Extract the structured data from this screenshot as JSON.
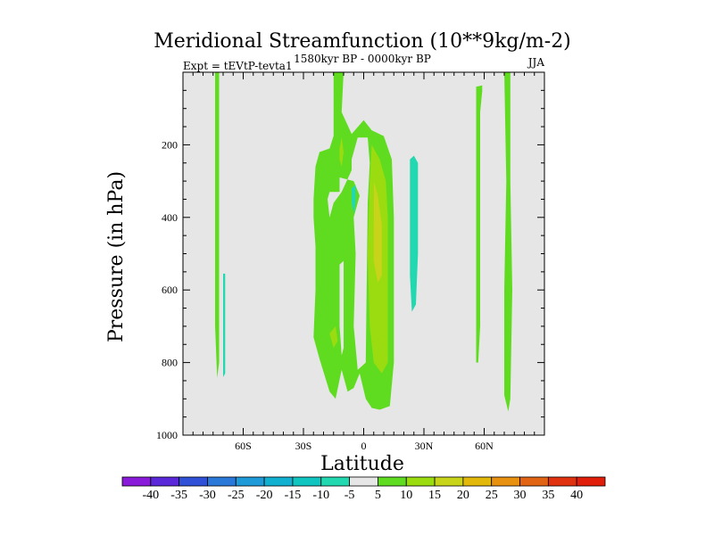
{
  "chart_data": {
    "type": "contour",
    "title": "Meridional Streamfunction (10**9kg/m-2)",
    "subtitle_left": "Expt = tEVtP-tevta1",
    "subtitle_center": "1580kyr BP - 0000kyr BP",
    "subtitle_right": "JJA",
    "xlabel": "Latitude",
    "ylabel": "Pressure (in hPa)",
    "xlim": [
      -90,
      90
    ],
    "ylim": [
      1000,
      0
    ],
    "x_ticks": [
      {
        "value": -60,
        "label": "60S"
      },
      {
        "value": -30,
        "label": "30S"
      },
      {
        "value": 0,
        "label": "0"
      },
      {
        "value": 30,
        "label": "30N"
      },
      {
        "value": 60,
        "label": "60N"
      }
    ],
    "y_ticks": [
      {
        "value": 200,
        "label": "200"
      },
      {
        "value": 400,
        "label": "400"
      },
      {
        "value": 600,
        "label": "600"
      },
      {
        "value": 800,
        "label": "800"
      },
      {
        "value": 1000,
        "label": "1000"
      }
    ],
    "background_color": "#e6e6e6",
    "colorbar": {
      "labels": [
        "-40",
        "-35",
        "-30",
        "-25",
        "-20",
        "-15",
        "-10",
        "-5",
        "5",
        "10",
        "15",
        "20",
        "25",
        "30",
        "35",
        "40"
      ],
      "colors": [
        "#8a1ad9",
        "#5a28d8",
        "#3050d8",
        "#2a78d8",
        "#1e9ad8",
        "#12b0d0",
        "#10c4c0",
        "#22d8b0",
        "#e6e6e6",
        "#60dc20",
        "#9adc10",
        "#c8d41a",
        "#e2b80a",
        "#e89010",
        "#e06414",
        "#e0320e",
        "#e01e0a"
      ]
    },
    "regions": [
      {
        "name": "positive-5-10",
        "level": "5",
        "color": "#60dc20",
        "polygons": [
          [
            [
              -74,
              0
            ],
            [
              -72,
              0
            ],
            [
              -72,
              400
            ],
            [
              -72,
              800
            ],
            [
              -73,
              842
            ],
            [
              -74,
              700
            ],
            [
              -74,
              300
            ]
          ],
          [
            [
              -15,
              0
            ],
            [
              -10,
              0
            ],
            [
              -11,
              110
            ],
            [
              -6,
              170
            ],
            [
              0,
              132
            ],
            [
              4,
              160
            ],
            [
              10,
              176
            ],
            [
              14,
              240
            ],
            [
              15,
              400
            ],
            [
              15,
              600
            ],
            [
              15,
              800
            ],
            [
              13,
              920
            ],
            [
              8,
              930
            ],
            [
              4,
              925
            ],
            [
              1,
              900
            ],
            [
              -2,
              830
            ],
            [
              -5,
              870
            ],
            [
              -8,
              880
            ],
            [
              -11,
              820
            ],
            [
              -14,
              900
            ],
            [
              -17,
              880
            ],
            [
              -22,
              790
            ],
            [
              -25,
              730
            ],
            [
              -24,
              600
            ],
            [
              -24,
              480
            ],
            [
              -25,
              400
            ],
            [
              -25,
              350
            ],
            [
              -24,
              260
            ],
            [
              -22,
              220
            ],
            [
              -17,
              210
            ],
            [
              -15,
              175
            ],
            [
              -15,
              110
            ]
          ],
          [
            [
              56,
              40
            ],
            [
              59,
              36
            ],
            [
              59,
              52
            ],
            [
              58,
              110
            ],
            [
              58,
              700
            ],
            [
              57,
              800
            ],
            [
              56,
              800
            ]
          ],
          [
            [
              70,
              0
            ],
            [
              73,
              0
            ],
            [
              73,
              300
            ],
            [
              74,
              600
            ],
            [
              73,
              900
            ],
            [
              72,
              935
            ],
            [
              70,
              890
            ],
            [
              70,
              600
            ],
            [
              71,
              300
            ]
          ]
        ]
      },
      {
        "name": "background-cutout",
        "level": "-5..5",
        "color": "#e6e6e6",
        "polygons": [
          [
            [
              -6,
              240
            ],
            [
              -3,
              180
            ],
            [
              2,
              180
            ],
            [
              3,
              250
            ],
            [
              2,
              360
            ],
            [
              1,
              800
            ],
            [
              -3,
              820
            ],
            [
              -5,
              700
            ],
            [
              -4,
              500
            ],
            [
              -5,
              400
            ],
            [
              -2,
              340
            ],
            [
              -5,
              300
            ],
            [
              -12,
              290
            ],
            [
              -12,
              330
            ],
            [
              -17,
              330
            ],
            [
              -18,
              350
            ],
            [
              -17,
              400
            ],
            [
              -15,
              360
            ],
            [
              -11,
              330
            ],
            [
              -6,
              270
            ]
          ],
          [
            [
              -12,
              530
            ],
            [
              -10,
              520
            ],
            [
              -10,
              760
            ],
            [
              -11,
              780
            ],
            [
              -12,
              700
            ]
          ],
          [
            [
              58,
              260
            ],
            [
              60,
              300
            ],
            [
              59,
              700
            ],
            [
              58,
              580
            ]
          ]
        ]
      },
      {
        "name": "positive-10-15",
        "level": "10",
        "color": "#9adc10",
        "polygons": [
          [
            [
              -12,
              210
            ],
            [
              -11,
              180
            ],
            [
              -10,
              220
            ],
            [
              -11,
              260
            ],
            [
              -12,
              240
            ]
          ],
          [
            [
              4,
              200
            ],
            [
              8,
              240
            ],
            [
              11,
              300
            ],
            [
              12,
              400
            ],
            [
              12,
              600
            ],
            [
              12,
              800
            ],
            [
              9,
              830
            ],
            [
              5,
              800
            ],
            [
              3,
              700
            ],
            [
              2,
              500
            ],
            [
              3,
              300
            ]
          ],
          [
            [
              -17,
              720
            ],
            [
              -14,
              700
            ],
            [
              -13,
              740
            ],
            [
              -15,
              760
            ]
          ]
        ]
      },
      {
        "name": "positive-15-20",
        "level": "15",
        "color": "#c8d41a",
        "polygons": [
          [
            [
              5,
              300
            ],
            [
              7,
              340
            ],
            [
              9,
              420
            ],
            [
              9,
              560
            ],
            [
              7,
              580
            ],
            [
              5,
              520
            ],
            [
              5,
              400
            ]
          ]
        ]
      },
      {
        "name": "negative-5-10",
        "level": "-5",
        "color": "#22d8b0",
        "polygons": [
          [
            [
              -70,
              555
            ],
            [
              -69,
              555
            ],
            [
              -69,
              700
            ],
            [
              -69,
              830
            ],
            [
              -70,
              840
            ],
            [
              -70,
              700
            ]
          ],
          [
            [
              -6,
              320
            ],
            [
              -4,
              310
            ],
            [
              -4,
              360
            ],
            [
              -5,
              390
            ],
            [
              -6,
              360
            ]
          ],
          [
            [
              23,
              240
            ],
            [
              25,
              230
            ],
            [
              27,
              250
            ],
            [
              27,
              400
            ],
            [
              27,
              500
            ],
            [
              26,
              640
            ],
            [
              24,
              660
            ],
            [
              23,
              560
            ],
            [
              23,
              400
            ]
          ]
        ]
      }
    ]
  }
}
